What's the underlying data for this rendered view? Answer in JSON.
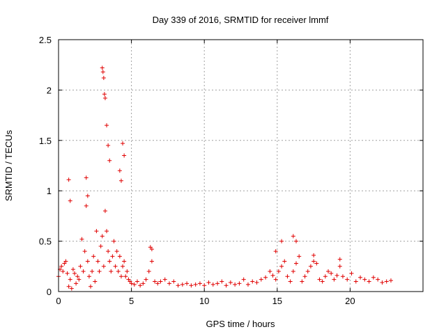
{
  "chart_data": {
    "type": "scatter",
    "title": "Day 339 of 2016, SRMTID for receiver lmmf",
    "xlabel": "GPS time / hours",
    "ylabel": "SRMTID / TECUs",
    "xlim": [
      0,
      25
    ],
    "ylim": [
      0,
      2.5
    ],
    "xticks": [
      0,
      5,
      10,
      15,
      20
    ],
    "xtick_labels": [
      "0",
      "5",
      "10",
      "15",
      "20"
    ],
    "yticks": [
      0,
      0.5,
      1,
      1.5,
      2,
      2.5
    ],
    "ytick_labels": [
      "0",
      "0.5",
      "1",
      "1.5",
      "2",
      "2.5"
    ],
    "grid": true,
    "marker": "+",
    "color": "#e00000",
    "series": [
      {
        "name": "SRMTID",
        "x": [
          0.0,
          0.1,
          0.2,
          0.3,
          0.4,
          0.5,
          0.6,
          0.7,
          0.8,
          0.9,
          1.0,
          1.1,
          1.2,
          1.3,
          1.4,
          1.5,
          1.6,
          1.7,
          1.8,
          1.9,
          2.0,
          2.1,
          2.2,
          2.3,
          2.4,
          2.5,
          2.6,
          2.7,
          2.8,
          2.9,
          3.0,
          3.1,
          3.2,
          3.3,
          3.4,
          3.5,
          3.6,
          3.7,
          3.8,
          3.9,
          4.0,
          4.1,
          4.2,
          4.3,
          4.4,
          4.5,
          4.6,
          4.7,
          4.8,
          4.9,
          5.0,
          5.2,
          5.4,
          5.6,
          5.8,
          6.0,
          6.2,
          6.4,
          6.6,
          6.8,
          7.0,
          7.3,
          7.6,
          7.9,
          8.2,
          8.5,
          8.8,
          9.1,
          9.4,
          9.7,
          10.0,
          10.3,
          10.6,
          10.9,
          11.2,
          11.5,
          11.8,
          12.1,
          12.4,
          12.7,
          13.0,
          13.3,
          13.6,
          13.9,
          14.2,
          14.5,
          14.7,
          14.9,
          15.1,
          15.3,
          15.5,
          15.7,
          15.9,
          16.1,
          16.3,
          16.5,
          16.7,
          16.9,
          17.1,
          17.3,
          17.5,
          17.7,
          17.9,
          18.1,
          18.3,
          18.5,
          18.7,
          18.9,
          19.1,
          19.3,
          19.5,
          19.8,
          20.1,
          20.4,
          20.7,
          21.0,
          21.3,
          21.6,
          21.9,
          22.2,
          22.5,
          22.8,
          0.7,
          0.8,
          1.9,
          2.0,
          3.0,
          3.05,
          3.1,
          3.15,
          3.2,
          3.3,
          3.4,
          3.5,
          4.2,
          4.3,
          4.4,
          4.5,
          6.3,
          6.4,
          14.9,
          15.3,
          16.1,
          16.3,
          17.5,
          19.3
        ],
        "y": [
          0.15,
          0.22,
          0.25,
          0.2,
          0.28,
          0.3,
          0.18,
          0.05,
          0.12,
          0.03,
          0.22,
          0.18,
          0.08,
          0.15,
          0.12,
          0.25,
          0.52,
          0.2,
          0.4,
          0.85,
          0.3,
          0.15,
          0.05,
          0.2,
          0.35,
          0.1,
          0.6,
          0.3,
          0.2,
          0.45,
          0.55,
          0.25,
          0.8,
          0.6,
          0.4,
          0.3,
          0.2,
          0.35,
          0.5,
          0.25,
          0.4,
          0.2,
          0.35,
          0.15,
          0.25,
          0.3,
          0.15,
          0.2,
          0.12,
          0.1,
          0.08,
          0.07,
          0.1,
          0.06,
          0.08,
          0.12,
          0.2,
          0.3,
          0.1,
          0.08,
          0.1,
          0.12,
          0.08,
          0.1,
          0.06,
          0.07,
          0.08,
          0.06,
          0.07,
          0.08,
          0.06,
          0.09,
          0.07,
          0.08,
          0.1,
          0.06,
          0.09,
          0.07,
          0.08,
          0.12,
          0.07,
          0.1,
          0.09,
          0.12,
          0.14,
          0.2,
          0.16,
          0.12,
          0.2,
          0.25,
          0.3,
          0.15,
          0.1,
          0.2,
          0.28,
          0.35,
          0.1,
          0.15,
          0.2,
          0.25,
          0.3,
          0.28,
          0.12,
          0.1,
          0.15,
          0.2,
          0.18,
          0.12,
          0.16,
          0.25,
          0.15,
          0.12,
          0.18,
          0.1,
          0.14,
          0.12,
          0.1,
          0.14,
          0.12,
          0.09,
          0.1,
          0.11,
          1.11,
          0.9,
          1.13,
          0.95,
          2.22,
          2.18,
          2.12,
          1.96,
          1.92,
          1.65,
          1.45,
          1.3,
          1.2,
          1.1,
          1.47,
          1.35,
          0.44,
          0.42,
          0.4,
          0.5,
          0.55,
          0.5,
          0.36,
          0.32
        ]
      }
    ]
  }
}
